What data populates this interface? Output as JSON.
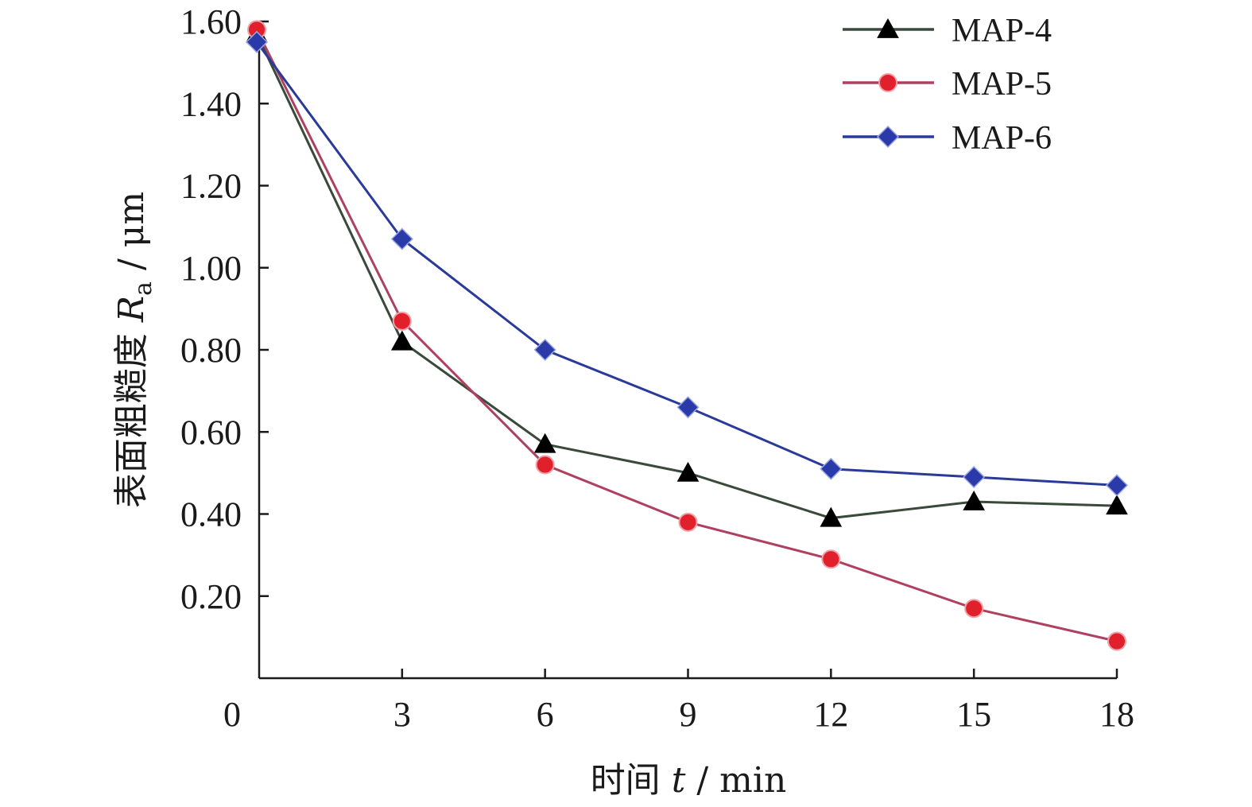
{
  "chart_data": {
    "type": "line",
    "x": [
      0,
      3,
      6,
      9,
      12,
      15,
      18
    ],
    "x_ticks": [
      "0",
      "3",
      "6",
      "9",
      "12",
      "15",
      "18"
    ],
    "y_ticks": [
      "0.20",
      "0.40",
      "0.60",
      "0.80",
      "1.00",
      "1.20",
      "1.40",
      "1.60"
    ],
    "xlim": [
      0,
      18
    ],
    "ylim": [
      0,
      1.6
    ],
    "xlabel": {
      "prefix": "时间 ",
      "var": "t",
      "suffix": " / min"
    },
    "ylabel": {
      "prefix": "表面粗糙度 ",
      "var": "R",
      "sub": "a",
      "suffix": " / μm"
    },
    "grid": false,
    "legend_position": "top-right",
    "series": [
      {
        "name": "MAP-4",
        "marker": "triangle",
        "line_color": "#3a4a3a",
        "marker_color": "#000000",
        "values": [
          1.57,
          0.82,
          0.57,
          0.5,
          0.39,
          0.43,
          0.42
        ]
      },
      {
        "name": "MAP-5",
        "marker": "circle",
        "line_color": "#b04060",
        "marker_color": "#e0202a",
        "values": [
          1.58,
          0.87,
          0.52,
          0.38,
          0.29,
          0.17,
          0.09
        ]
      },
      {
        "name": "MAP-6",
        "marker": "diamond",
        "line_color": "#2a3a9a",
        "marker_color": "#2a3aa8",
        "values": [
          1.55,
          1.07,
          0.8,
          0.66,
          0.51,
          0.49,
          0.47
        ]
      }
    ]
  }
}
